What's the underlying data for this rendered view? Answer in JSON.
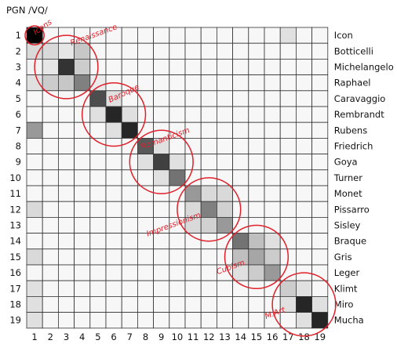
{
  "chart_data": {
    "type": "heatmap",
    "title": "PGN /VQ/",
    "xlabel": "",
    "ylabel": "",
    "x_ticks": [
      "1",
      "2",
      "3",
      "4",
      "5",
      "6",
      "7",
      "8",
      "9",
      "10",
      "11",
      "12",
      "13",
      "14",
      "15",
      "16",
      "17",
      "18",
      "19"
    ],
    "y_ticks": [
      "1",
      "2",
      "3",
      "4",
      "5",
      "6",
      "7",
      "8",
      "9",
      "10",
      "11",
      "12",
      "13",
      "14",
      "15",
      "16",
      "17",
      "18",
      "19"
    ],
    "row_labels": [
      "Icon",
      "Botticelli",
      "Michelangelo",
      "Raphael",
      "Caravaggio",
      "Rembrandt",
      "Rubens",
      "Friedrich",
      "Goya",
      "Turner",
      "Monet",
      "Pissarro",
      "Sisley",
      "Braque",
      "Gris",
      "Leger",
      "Klimt",
      "Miro",
      "Mucha"
    ],
    "value_range": [
      0,
      1
    ],
    "colormap": "white-to-black grayscale",
    "grid": true,
    "values": [
      [
        1.0,
        0.03,
        0.03,
        0.03,
        0.03,
        0.03,
        0.03,
        0.03,
        0.03,
        0.03,
        0.03,
        0.03,
        0.03,
        0.03,
        0.03,
        0.03,
        0.12,
        0.03,
        0.03
      ],
      [
        0.15,
        0.15,
        0.1,
        0.22,
        0.03,
        0.03,
        0.03,
        0.03,
        0.03,
        0.03,
        0.03,
        0.03,
        0.03,
        0.03,
        0.03,
        0.03,
        0.03,
        0.03,
        0.03
      ],
      [
        0.05,
        0.1,
        0.8,
        0.2,
        0.03,
        0.03,
        0.03,
        0.03,
        0.03,
        0.03,
        0.03,
        0.03,
        0.03,
        0.03,
        0.03,
        0.03,
        0.03,
        0.03,
        0.03
      ],
      [
        0.12,
        0.2,
        0.22,
        0.5,
        0.08,
        0.03,
        0.03,
        0.03,
        0.03,
        0.03,
        0.03,
        0.03,
        0.03,
        0.03,
        0.03,
        0.03,
        0.03,
        0.03,
        0.03
      ],
      [
        0.03,
        0.03,
        0.03,
        0.03,
        0.7,
        0.12,
        0.03,
        0.03,
        0.03,
        0.03,
        0.03,
        0.03,
        0.03,
        0.03,
        0.03,
        0.03,
        0.03,
        0.03,
        0.03
      ],
      [
        0.03,
        0.03,
        0.03,
        0.03,
        0.12,
        0.85,
        0.12,
        0.03,
        0.03,
        0.03,
        0.03,
        0.03,
        0.03,
        0.03,
        0.03,
        0.03,
        0.03,
        0.03,
        0.03
      ],
      [
        0.4,
        0.03,
        0.03,
        0.03,
        0.03,
        0.12,
        0.85,
        0.03,
        0.03,
        0.03,
        0.03,
        0.03,
        0.03,
        0.03,
        0.03,
        0.03,
        0.03,
        0.03,
        0.03
      ],
      [
        0.03,
        0.03,
        0.03,
        0.03,
        0.03,
        0.03,
        0.03,
        0.65,
        0.12,
        0.03,
        0.03,
        0.03,
        0.03,
        0.03,
        0.03,
        0.03,
        0.03,
        0.03,
        0.03
      ],
      [
        0.03,
        0.03,
        0.03,
        0.03,
        0.03,
        0.03,
        0.03,
        0.12,
        0.75,
        0.12,
        0.03,
        0.03,
        0.03,
        0.03,
        0.03,
        0.03,
        0.03,
        0.03,
        0.03
      ],
      [
        0.03,
        0.03,
        0.03,
        0.03,
        0.03,
        0.03,
        0.03,
        0.03,
        0.12,
        0.55,
        0.03,
        0.03,
        0.03,
        0.03,
        0.03,
        0.03,
        0.03,
        0.03,
        0.03
      ],
      [
        0.03,
        0.03,
        0.03,
        0.03,
        0.03,
        0.03,
        0.03,
        0.03,
        0.03,
        0.03,
        0.4,
        0.15,
        0.15,
        0.03,
        0.03,
        0.03,
        0.03,
        0.03,
        0.03
      ],
      [
        0.15,
        0.03,
        0.03,
        0.03,
        0.03,
        0.03,
        0.03,
        0.03,
        0.03,
        0.03,
        0.15,
        0.5,
        0.18,
        0.03,
        0.03,
        0.03,
        0.03,
        0.03,
        0.03
      ],
      [
        0.03,
        0.03,
        0.03,
        0.03,
        0.03,
        0.03,
        0.03,
        0.03,
        0.03,
        0.03,
        0.15,
        0.18,
        0.4,
        0.03,
        0.03,
        0.03,
        0.03,
        0.03,
        0.03
      ],
      [
        0.03,
        0.03,
        0.03,
        0.03,
        0.03,
        0.03,
        0.03,
        0.03,
        0.03,
        0.03,
        0.03,
        0.03,
        0.03,
        0.55,
        0.25,
        0.12,
        0.03,
        0.03,
        0.03
      ],
      [
        0.15,
        0.03,
        0.03,
        0.03,
        0.03,
        0.03,
        0.03,
        0.03,
        0.03,
        0.03,
        0.03,
        0.03,
        0.03,
        0.25,
        0.35,
        0.2,
        0.03,
        0.03,
        0.03
      ],
      [
        0.03,
        0.03,
        0.03,
        0.03,
        0.03,
        0.03,
        0.03,
        0.03,
        0.03,
        0.03,
        0.03,
        0.03,
        0.03,
        0.12,
        0.2,
        0.4,
        0.03,
        0.03,
        0.03
      ],
      [
        0.12,
        0.03,
        0.03,
        0.03,
        0.03,
        0.03,
        0.03,
        0.03,
        0.03,
        0.03,
        0.03,
        0.03,
        0.03,
        0.03,
        0.03,
        0.03,
        0.2,
        0.12,
        0.03
      ],
      [
        0.12,
        0.03,
        0.03,
        0.03,
        0.03,
        0.03,
        0.03,
        0.03,
        0.03,
        0.03,
        0.03,
        0.03,
        0.03,
        0.03,
        0.03,
        0.03,
        0.12,
        0.85,
        0.12
      ],
      [
        0.12,
        0.03,
        0.03,
        0.03,
        0.03,
        0.03,
        0.03,
        0.03,
        0.03,
        0.03,
        0.03,
        0.03,
        0.03,
        0.03,
        0.03,
        0.03,
        0.03,
        0.12,
        0.85
      ]
    ],
    "annotations": [
      {
        "text": "Icons",
        "center": [
          1,
          1
        ],
        "radius_cells": 0.6
      },
      {
        "text": "Renaissance",
        "center": [
          3,
          3
        ],
        "radius_cells": 2.0
      },
      {
        "text": "Baroque",
        "center": [
          6,
          6
        ],
        "radius_cells": 2.0
      },
      {
        "text": "Romanticism",
        "center": [
          9,
          9
        ],
        "radius_cells": 2.0
      },
      {
        "text": "Impressionism",
        "center": [
          12,
          12
        ],
        "radius_cells": 2.0
      },
      {
        "text": "Cubism",
        "center": [
          15,
          15
        ],
        "radius_cells": 2.0
      },
      {
        "text": "M.Art",
        "center": [
          18,
          18
        ],
        "radius_cells": 2.0
      }
    ],
    "annotation_color": "#e0202a"
  }
}
